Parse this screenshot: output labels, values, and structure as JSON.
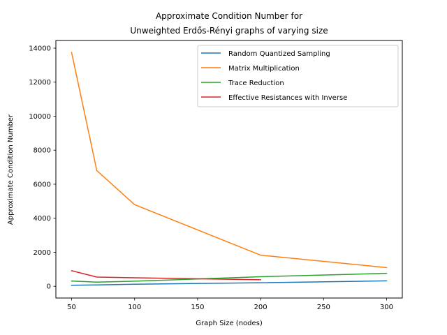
{
  "chart_data": {
    "type": "line",
    "title_lines": [
      "Approximate Condition Number for",
      "Unweighted Erdős-Rényi graphs of varying size"
    ],
    "xlabel": "Graph Size (nodes)",
    "ylabel": "Approximate Condition Number",
    "xlim": [
      37.5,
      312.5
    ],
    "ylim": [
      -690,
      14450
    ],
    "xticks": [
      50,
      100,
      150,
      200,
      250,
      300
    ],
    "yticks": [
      0,
      2000,
      4000,
      6000,
      8000,
      10000,
      12000,
      14000
    ],
    "grid": false,
    "legend_position": "top-right",
    "series": [
      {
        "name": "Random Quantized Sampling",
        "color": "#1f77b4",
        "x": [
          50,
          70,
          100,
          200,
          300
        ],
        "values": [
          60,
          80,
          120,
          210,
          320
        ]
      },
      {
        "name": "Matrix Multiplication",
        "color": "#ff7f0e",
        "x": [
          50,
          70,
          100,
          200,
          300
        ],
        "values": [
          13750,
          6800,
          4800,
          1830,
          1100
        ]
      },
      {
        "name": "Trace Reduction",
        "color": "#2ca02c",
        "x": [
          50,
          70,
          100,
          200,
          300
        ],
        "values": [
          310,
          240,
          300,
          560,
          760
        ]
      },
      {
        "name": "Effective Resistances with Inverse",
        "color": "#d62728",
        "x": [
          50,
          70,
          100,
          200
        ],
        "values": [
          920,
          540,
          500,
          380
        ]
      }
    ]
  }
}
